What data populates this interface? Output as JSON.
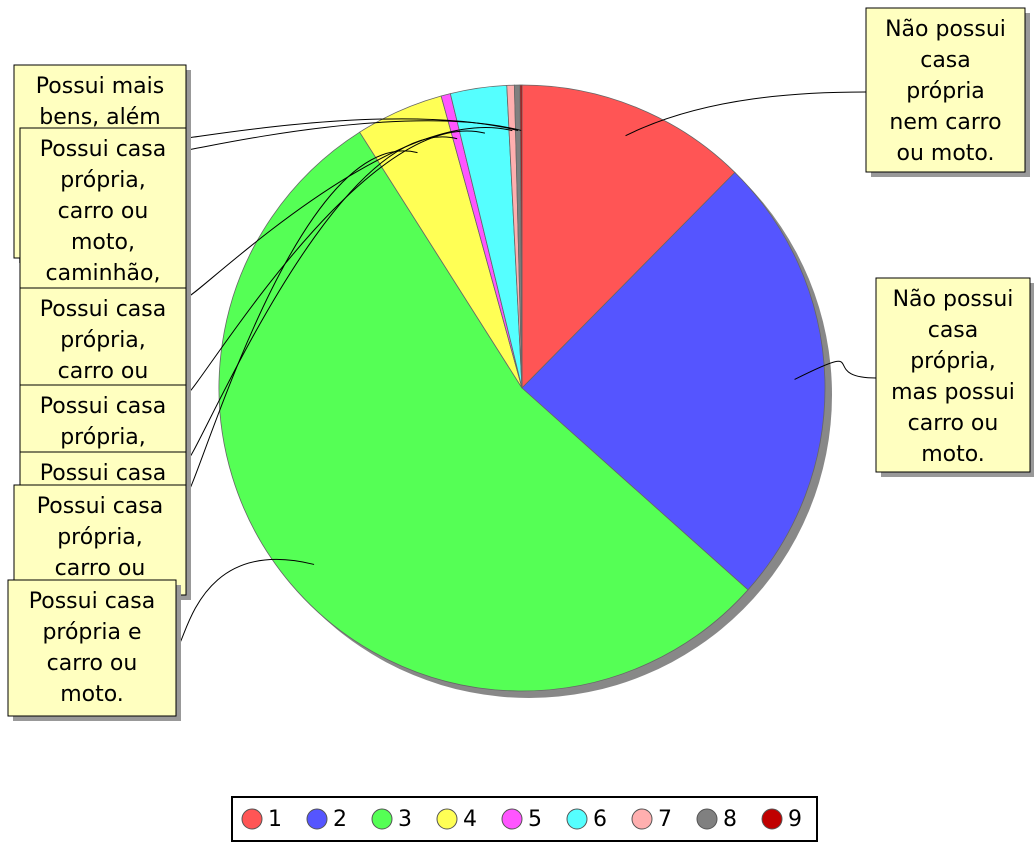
{
  "chart_data": {
    "type": "pie",
    "categories": [
      "1",
      "2",
      "3",
      "4",
      "5",
      "6",
      "7",
      "8",
      "9"
    ],
    "values": [
      12.4,
      24.2,
      54.4,
      4.7,
      0.5,
      3.0,
      0.4,
      0.3,
      0.1
    ],
    "colors": [
      "#ff5555",
      "#5555ff",
      "#55ff55",
      "#ffff55",
      "#ff55ff",
      "#55ffff",
      "#ffafaf",
      "#808080",
      "#c00000"
    ],
    "labels": [
      [
        "Não possui",
        "casa",
        "própria",
        "nem carro",
        "ou moto."
      ],
      [
        "Não possui",
        "casa",
        "própria,",
        "mas possui",
        "carro ou",
        "moto."
      ],
      [
        "Possui casa",
        "própria e",
        "carro ou",
        "moto."
      ],
      [
        "Possui casa",
        "própria,",
        "carro ou"
      ],
      [
        "Possui casa"
      ],
      [
        "Possui casa",
        "própria,"
      ],
      [
        "Possui casa",
        "própria,",
        "carro ou"
      ],
      [
        "Possui casa",
        "própria,",
        "carro ou",
        "moto,",
        "caminhão,"
      ],
      [
        "Possui mais",
        "bens, além"
      ]
    ],
    "legend": "bottom"
  }
}
